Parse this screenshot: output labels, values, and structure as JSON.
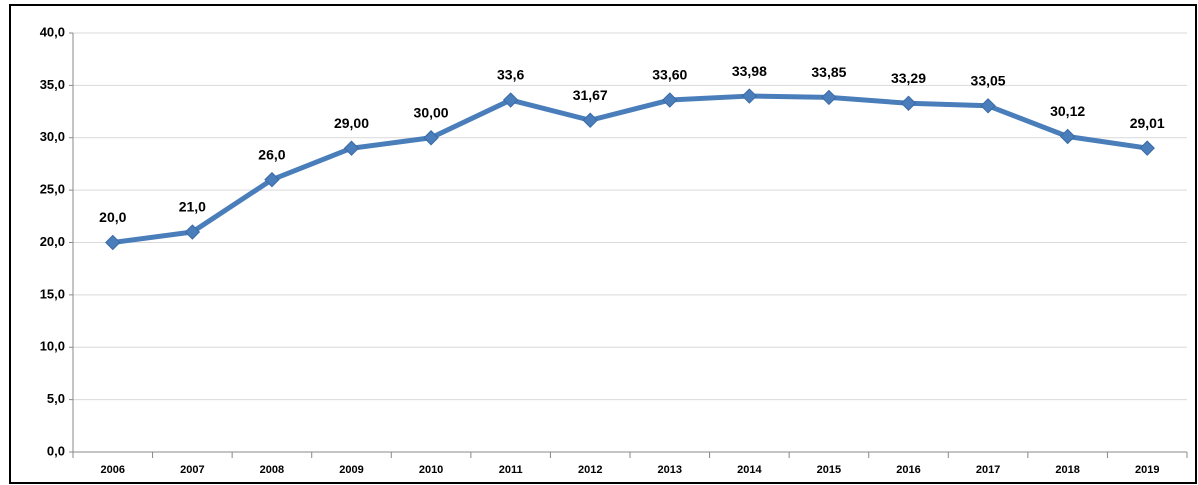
{
  "chart_data": {
    "type": "line",
    "categories": [
      "2006",
      "2007",
      "2008",
      "2009",
      "2010",
      "2011",
      "2012",
      "2013",
      "2014",
      "2015",
      "2016",
      "2017",
      "2018",
      "2019"
    ],
    "values": [
      20.0,
      21.0,
      26.0,
      29.0,
      30.0,
      33.6,
      31.67,
      33.6,
      33.98,
      33.85,
      33.29,
      33.05,
      30.12,
      29.01
    ],
    "value_labels": [
      "20,0",
      "21,0",
      "26,0",
      "29,00",
      "30,00",
      "33,6",
      "31,67",
      "33,60",
      "33,98",
      "33,85",
      "33,29",
      "33,05",
      "30,12",
      "29,01"
    ],
    "color": "#4a7ebb",
    "ylim": [
      0,
      40
    ],
    "yticks": [
      {
        "value": 0,
        "label": "0,0"
      },
      {
        "value": 5,
        "label": "5,0"
      },
      {
        "value": 10,
        "label": "10,0"
      },
      {
        "value": 15,
        "label": "15,0"
      },
      {
        "value": 20,
        "label": "20,0"
      },
      {
        "value": 25,
        "label": "25,0"
      },
      {
        "value": 30,
        "label": "30,0"
      },
      {
        "value": 35,
        "label": "35,0"
      },
      {
        "value": 40,
        "label": "40,0"
      }
    ],
    "grid": true
  }
}
